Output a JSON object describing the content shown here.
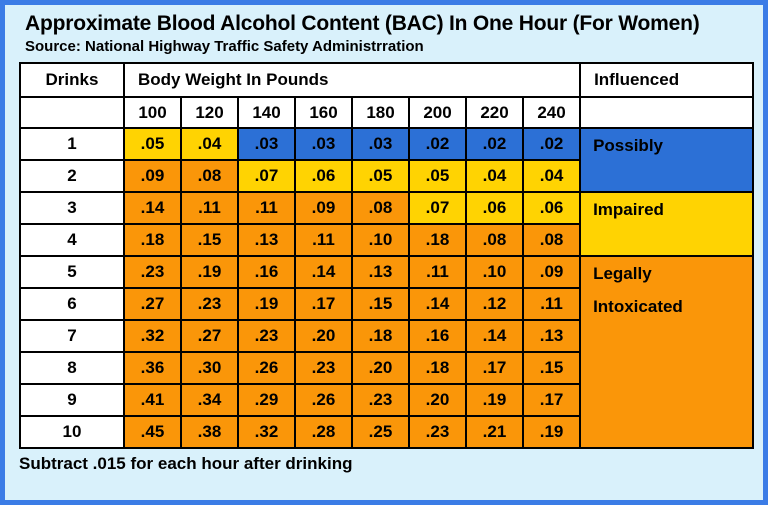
{
  "page": {
    "title": "Approximate Blood Alcohol Content (BAC) In One Hour (For Women)",
    "source": "Source: National Highway Traffic Safety Administrration",
    "footnote": "Subtract .015 for each hour after drinking"
  },
  "chart_data": {
    "type": "table",
    "title": "Approximate Blood Alcohol Content (BAC) In One Hour (For Women)",
    "col_headers": {
      "drinks": "Drinks",
      "weight_group": "Body Weight In Pounds",
      "influenced": "Influenced"
    },
    "weights": [
      "100",
      "120",
      "140",
      "160",
      "180",
      "200",
      "220",
      "240"
    ],
    "rows": [
      {
        "drinks": "1",
        "values": [
          ".05",
          ".04",
          ".03",
          ".03",
          ".03",
          ".02",
          ".02",
          ".02"
        ],
        "zones": [
          "yellow",
          "yellow",
          "blue",
          "blue",
          "blue",
          "blue",
          "blue",
          "blue"
        ]
      },
      {
        "drinks": "2",
        "values": [
          ".09",
          ".08",
          ".07",
          ".06",
          ".05",
          ".05",
          ".04",
          ".04"
        ],
        "zones": [
          "orange",
          "orange",
          "yellow",
          "yellow",
          "yellow",
          "yellow",
          "yellow",
          "yellow"
        ]
      },
      {
        "drinks": "3",
        "values": [
          ".14",
          ".11",
          ".11",
          ".09",
          ".08",
          ".07",
          ".06",
          ".06"
        ],
        "zones": [
          "orange",
          "orange",
          "orange",
          "orange",
          "orange",
          "yellow",
          "yellow",
          "yellow"
        ]
      },
      {
        "drinks": "4",
        "values": [
          ".18",
          ".15",
          ".13",
          ".11",
          ".10",
          ".18",
          ".08",
          ".08"
        ],
        "zones": [
          "orange",
          "orange",
          "orange",
          "orange",
          "orange",
          "orange",
          "orange",
          "orange"
        ]
      },
      {
        "drinks": "5",
        "values": [
          ".23",
          ".19",
          ".16",
          ".14",
          ".13",
          ".11",
          ".10",
          ".09"
        ],
        "zones": [
          "orange",
          "orange",
          "orange",
          "orange",
          "orange",
          "orange",
          "orange",
          "orange"
        ]
      },
      {
        "drinks": "6",
        "values": [
          ".27",
          ".23",
          ".19",
          ".17",
          ".15",
          ".14",
          ".12",
          ".11"
        ],
        "zones": [
          "orange",
          "orange",
          "orange",
          "orange",
          "orange",
          "orange",
          "orange",
          "orange"
        ]
      },
      {
        "drinks": "7",
        "values": [
          ".32",
          ".27",
          ".23",
          ".20",
          ".18",
          ".16",
          ".14",
          ".13"
        ],
        "zones": [
          "orange",
          "orange",
          "orange",
          "orange",
          "orange",
          "orange",
          "orange",
          "orange"
        ]
      },
      {
        "drinks": "8",
        "values": [
          ".36",
          ".30",
          ".26",
          ".23",
          ".20",
          ".18",
          ".17",
          ".15"
        ],
        "zones": [
          "orange",
          "orange",
          "orange",
          "orange",
          "orange",
          "orange",
          "orange",
          "orange"
        ]
      },
      {
        "drinks": "9",
        "values": [
          ".41",
          ".34",
          ".29",
          ".26",
          ".23",
          ".20",
          ".19",
          ".17"
        ],
        "zones": [
          "orange",
          "orange",
          "orange",
          "orange",
          "orange",
          "orange",
          "orange",
          "orange"
        ]
      },
      {
        "drinks": "10",
        "values": [
          ".45",
          ".38",
          ".32",
          ".28",
          ".25",
          ".23",
          ".21",
          ".19"
        ],
        "zones": [
          "orange",
          "orange",
          "orange",
          "orange",
          "orange",
          "orange",
          "orange",
          "orange"
        ]
      }
    ],
    "influence_labels": [
      {
        "text": "Possibly",
        "zone": "blue",
        "row_start": 0,
        "row_span": 2
      },
      {
        "text": "Impaired",
        "zone": "yellow",
        "row_start": 2,
        "row_span": 2
      },
      {
        "text": "Legally\nIntoxicated",
        "zone": "orange",
        "row_start": 4,
        "row_span": 6
      }
    ]
  },
  "colors": {
    "blue": "#2C70D6",
    "yellow": "#FFD302",
    "orange": "#FA9609",
    "frame_blue": "#3B7CE6",
    "page_bg": "#D9F1FB",
    "cell_border": "#000000",
    "text": "#000000"
  }
}
